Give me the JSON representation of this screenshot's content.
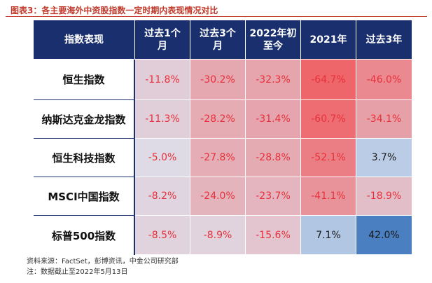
{
  "title": "图表3：各主要海外中资股指数一定时期内表现情况对比",
  "table": {
    "corner_label": "指数表现",
    "columns": [
      {
        "line1": "过去1个",
        "line2": "月"
      },
      {
        "line1": "过去3个",
        "line2": "月"
      },
      {
        "line1": "2022年初",
        "line2": "至今"
      },
      {
        "line1": "2021年",
        "line2": ""
      },
      {
        "line1": "过去3年",
        "line2": ""
      }
    ],
    "rows": [
      {
        "label": "恒生指数",
        "cells": [
          "-11.8%",
          "-30.2%",
          "-32.3%",
          "-64.7%",
          "-46.0%"
        ],
        "values": [
          -11.8,
          -30.2,
          -32.3,
          -64.7,
          -46.0
        ]
      },
      {
        "label": "纳斯达克金龙指数",
        "cells": [
          "-11.3%",
          "-28.2%",
          "-31.4%",
          "-60.7%",
          "-34.1%"
        ],
        "values": [
          -11.3,
          -28.2,
          -31.4,
          -60.7,
          -34.1
        ]
      },
      {
        "label": "恒生科技指数",
        "cells": [
          "-5.0%",
          "-27.8%",
          "-28.8%",
          "-52.1%",
          "3.7%"
        ],
        "values": [
          -5.0,
          -27.8,
          -28.8,
          -52.1,
          3.7
        ]
      },
      {
        "label": "MSCI中国指数",
        "cells": [
          "-8.2%",
          "-24.0%",
          "-23.7%",
          "-41.1%",
          "-18.9%"
        ],
        "values": [
          -8.2,
          -24.0,
          -23.7,
          -41.1,
          -18.9
        ]
      },
      {
        "label": "标普500指数",
        "cells": [
          "-8.5%",
          "-8.9%",
          "-15.6%",
          "7.1%",
          "42.0%"
        ],
        "values": [
          -8.5,
          -8.9,
          -15.6,
          7.1,
          42.0
        ]
      }
    ]
  },
  "colors": {
    "header_bg": "#1a2f6e",
    "negative_text": "#e8303a",
    "positive_text": "#1b1b1b",
    "strong_negative": "#f05a5e",
    "strong_positive": "#4a7fc1"
  },
  "footnotes": {
    "source": "资料来源：FactSet，彭博资讯，中金公司研究部",
    "note": "注：数据截止至2022年5月13日"
  }
}
